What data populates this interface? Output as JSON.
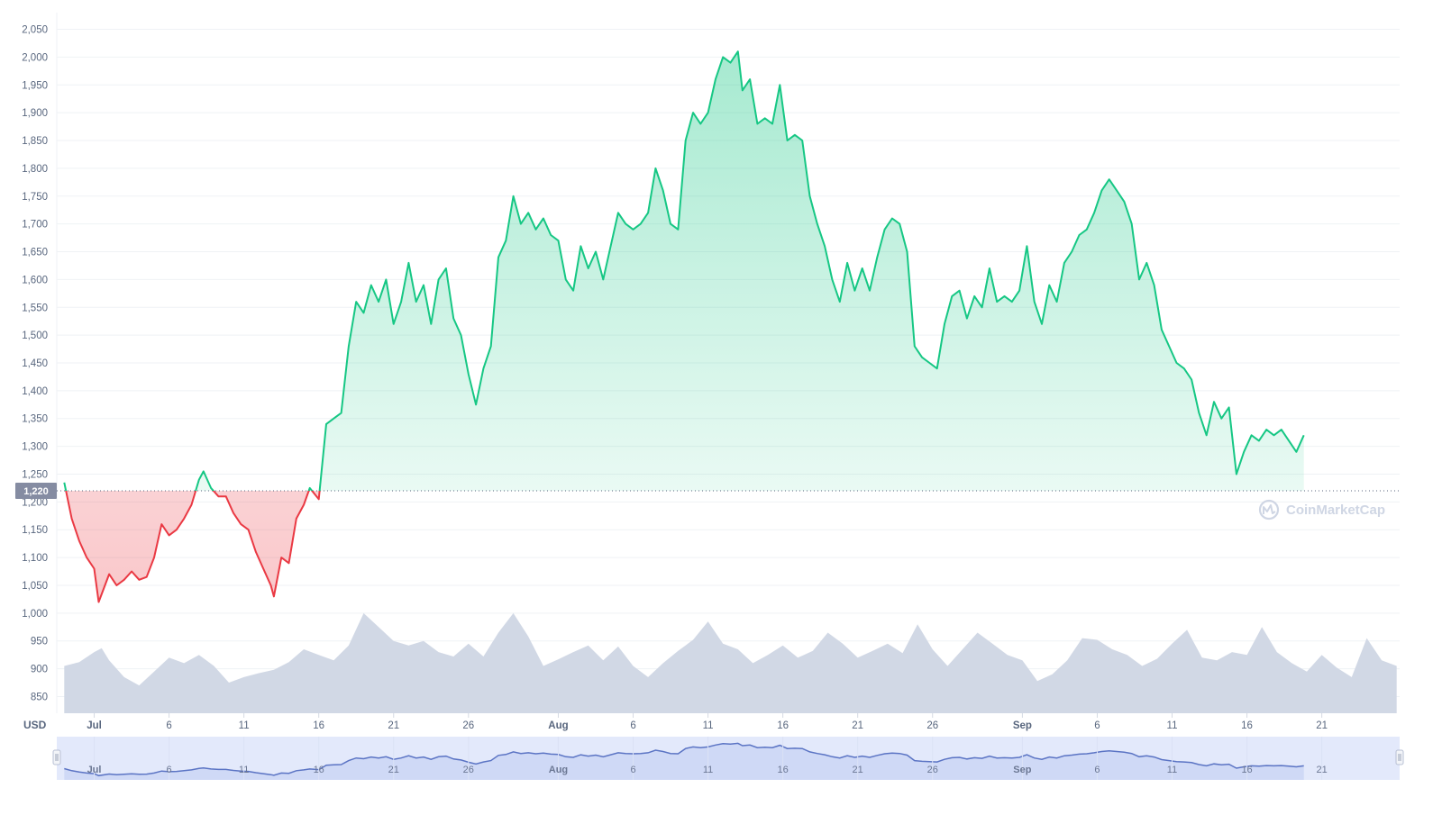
{
  "chart_data": {
    "type": "line",
    "unit_label": "USD",
    "watermark": "CoinMarketCap",
    "reference_line": {
      "value": 1220,
      "label": "1,220"
    },
    "ylim": [
      820,
      2080
    ],
    "yticks": [
      {
        "value": 850,
        "label": "850"
      },
      {
        "value": 900,
        "label": "900"
      },
      {
        "value": 950,
        "label": "950"
      },
      {
        "value": 1000,
        "label": "1,000"
      },
      {
        "value": 1050,
        "label": "1,050"
      },
      {
        "value": 1100,
        "label": "1,100"
      },
      {
        "value": 1150,
        "label": "1,150"
      },
      {
        "value": 1200,
        "label": "1,200"
      },
      {
        "value": 1250,
        "label": "1,250"
      },
      {
        "value": 1300,
        "label": "1,300"
      },
      {
        "value": 1350,
        "label": "1,350"
      },
      {
        "value": 1400,
        "label": "1,400"
      },
      {
        "value": 1450,
        "label": "1,450"
      },
      {
        "value": 1500,
        "label": "1,500"
      },
      {
        "value": 1550,
        "label": "1,550"
      },
      {
        "value": 1600,
        "label": "1,600"
      },
      {
        "value": 1650,
        "label": "1,650"
      },
      {
        "value": 1700,
        "label": "1,700"
      },
      {
        "value": 1750,
        "label": "1,750"
      },
      {
        "value": 1800,
        "label": "1,800"
      },
      {
        "value": 1850,
        "label": "1,850"
      },
      {
        "value": 1900,
        "label": "1,900"
      },
      {
        "value": 1950,
        "label": "1,950"
      },
      {
        "value": 2000,
        "label": "2,000"
      },
      {
        "value": 2050,
        "label": "2,050"
      }
    ],
    "xlim": [
      -0.5,
      89.2
    ],
    "xticks": [
      {
        "day": 2,
        "label": "Jul",
        "bold": true
      },
      {
        "day": 7,
        "label": "6",
        "bold": false
      },
      {
        "day": 12,
        "label": "11",
        "bold": false
      },
      {
        "day": 17,
        "label": "16",
        "bold": false
      },
      {
        "day": 22,
        "label": "21",
        "bold": false
      },
      {
        "day": 27,
        "label": "26",
        "bold": false
      },
      {
        "day": 33,
        "label": "Aug",
        "bold": true
      },
      {
        "day": 38,
        "label": "6",
        "bold": false
      },
      {
        "day": 43,
        "label": "11",
        "bold": false
      },
      {
        "day": 48,
        "label": "16",
        "bold": false
      },
      {
        "day": 53,
        "label": "21",
        "bold": false
      },
      {
        "day": 58,
        "label": "26",
        "bold": false
      },
      {
        "day": 64,
        "label": "Sep",
        "bold": true
      },
      {
        "day": 69,
        "label": "6",
        "bold": false
      },
      {
        "day": 74,
        "label": "11",
        "bold": false
      },
      {
        "day": 79,
        "label": "16",
        "bold": false
      },
      {
        "day": 84,
        "label": "21",
        "bold": false
      }
    ],
    "series": [
      {
        "values": [
          [
            0,
            1235
          ],
          [
            0.5,
            1170
          ],
          [
            1,
            1130
          ],
          [
            1.5,
            1100
          ],
          [
            2,
            1080
          ],
          [
            2.3,
            1020
          ],
          [
            3,
            1070
          ],
          [
            3.5,
            1050
          ],
          [
            4,
            1060
          ],
          [
            4.5,
            1075
          ],
          [
            5,
            1060
          ],
          [
            5.5,
            1065
          ],
          [
            6,
            1100
          ],
          [
            6.5,
            1160
          ],
          [
            7,
            1140
          ],
          [
            7.5,
            1150
          ],
          [
            8,
            1170
          ],
          [
            8.5,
            1195
          ],
          [
            9,
            1240
          ],
          [
            9.3,
            1255
          ],
          [
            9.8,
            1225
          ],
          [
            10.3,
            1210
          ],
          [
            10.8,
            1210
          ],
          [
            11.3,
            1180
          ],
          [
            11.8,
            1160
          ],
          [
            12.3,
            1150
          ],
          [
            12.8,
            1110
          ],
          [
            13.3,
            1080
          ],
          [
            13.8,
            1050
          ],
          [
            14,
            1030
          ],
          [
            14.5,
            1100
          ],
          [
            15,
            1090
          ],
          [
            15.5,
            1170
          ],
          [
            16,
            1195
          ],
          [
            16.4,
            1225
          ],
          [
            17,
            1205
          ],
          [
            17.5,
            1340
          ],
          [
            18,
            1350
          ],
          [
            18.5,
            1360
          ],
          [
            19,
            1480
          ],
          [
            19.5,
            1560
          ],
          [
            20,
            1540
          ],
          [
            20.5,
            1590
          ],
          [
            21,
            1560
          ],
          [
            21.5,
            1600
          ],
          [
            22,
            1520
          ],
          [
            22.5,
            1560
          ],
          [
            23,
            1630
          ],
          [
            23.5,
            1560
          ],
          [
            24,
            1590
          ],
          [
            24.5,
            1520
          ],
          [
            25,
            1600
          ],
          [
            25.5,
            1620
          ],
          [
            26,
            1530
          ],
          [
            26.5,
            1500
          ],
          [
            27,
            1430
          ],
          [
            27.5,
            1375
          ],
          [
            28,
            1440
          ],
          [
            28.5,
            1480
          ],
          [
            29,
            1640
          ],
          [
            29.5,
            1670
          ],
          [
            30,
            1750
          ],
          [
            30.5,
            1700
          ],
          [
            31,
            1720
          ],
          [
            31.5,
            1690
          ],
          [
            32,
            1710
          ],
          [
            32.5,
            1680
          ],
          [
            33,
            1670
          ],
          [
            33.5,
            1600
          ],
          [
            34,
            1580
          ],
          [
            34.5,
            1660
          ],
          [
            35,
            1620
          ],
          [
            35.5,
            1650
          ],
          [
            36,
            1600
          ],
          [
            36.5,
            1660
          ],
          [
            37,
            1720
          ],
          [
            37.5,
            1700
          ],
          [
            38,
            1690
          ],
          [
            38.5,
            1700
          ],
          [
            39,
            1720
          ],
          [
            39.5,
            1800
          ],
          [
            40,
            1760
          ],
          [
            40.5,
            1700
          ],
          [
            41,
            1690
          ],
          [
            41.5,
            1850
          ],
          [
            42,
            1900
          ],
          [
            42.5,
            1880
          ],
          [
            43,
            1900
          ],
          [
            43.5,
            1960
          ],
          [
            44,
            2000
          ],
          [
            44.5,
            1990
          ],
          [
            45,
            2010
          ],
          [
            45.3,
            1940
          ],
          [
            45.8,
            1960
          ],
          [
            46.3,
            1880
          ],
          [
            46.8,
            1890
          ],
          [
            47.3,
            1880
          ],
          [
            47.8,
            1950
          ],
          [
            48.3,
            1850
          ],
          [
            48.8,
            1860
          ],
          [
            49.3,
            1850
          ],
          [
            49.8,
            1750
          ],
          [
            50.3,
            1700
          ],
          [
            50.8,
            1660
          ],
          [
            51.3,
            1600
          ],
          [
            51.8,
            1560
          ],
          [
            52.3,
            1630
          ],
          [
            52.8,
            1580
          ],
          [
            53.3,
            1620
          ],
          [
            53.8,
            1580
          ],
          [
            54.3,
            1640
          ],
          [
            54.8,
            1690
          ],
          [
            55.3,
            1710
          ],
          [
            55.8,
            1700
          ],
          [
            56.3,
            1650
          ],
          [
            56.8,
            1480
          ],
          [
            57.3,
            1460
          ],
          [
            57.8,
            1450
          ],
          [
            58.3,
            1440
          ],
          [
            58.8,
            1520
          ],
          [
            59.3,
            1570
          ],
          [
            59.8,
            1580
          ],
          [
            60.3,
            1530
          ],
          [
            60.8,
            1570
          ],
          [
            61.3,
            1550
          ],
          [
            61.8,
            1620
          ],
          [
            62.3,
            1560
          ],
          [
            62.8,
            1570
          ],
          [
            63.3,
            1560
          ],
          [
            63.8,
            1580
          ],
          [
            64.3,
            1660
          ],
          [
            64.8,
            1560
          ],
          [
            65.3,
            1520
          ],
          [
            65.8,
            1590
          ],
          [
            66.3,
            1560
          ],
          [
            66.8,
            1630
          ],
          [
            67.3,
            1650
          ],
          [
            67.8,
            1680
          ],
          [
            68.3,
            1690
          ],
          [
            68.8,
            1720
          ],
          [
            69.3,
            1760
          ],
          [
            69.8,
            1780
          ],
          [
            70.3,
            1760
          ],
          [
            70.8,
            1740
          ],
          [
            71.3,
            1700
          ],
          [
            71.8,
            1600
          ],
          [
            72.3,
            1630
          ],
          [
            72.8,
            1590
          ],
          [
            73.3,
            1510
          ],
          [
            73.8,
            1480
          ],
          [
            74.3,
            1450
          ],
          [
            74.8,
            1440
          ],
          [
            75.3,
            1420
          ],
          [
            75.8,
            1360
          ],
          [
            76.3,
            1320
          ],
          [
            76.8,
            1380
          ],
          [
            77.3,
            1350
          ],
          [
            77.8,
            1370
          ],
          [
            78.3,
            1250
          ],
          [
            78.8,
            1290
          ],
          [
            79.3,
            1320
          ],
          [
            79.8,
            1310
          ],
          [
            80.3,
            1330
          ],
          [
            80.8,
            1320
          ],
          [
            81.3,
            1330
          ],
          [
            81.8,
            1310
          ],
          [
            82.3,
            1290
          ],
          [
            82.8,
            1320
          ]
        ]
      }
    ],
    "volume": [
      [
        0,
        905
      ],
      [
        1,
        912
      ],
      [
        2,
        930
      ],
      [
        2.5,
        937
      ],
      [
        3,
        915
      ],
      [
        4,
        885
      ],
      [
        5,
        870
      ],
      [
        6,
        895
      ],
      [
        7,
        920
      ],
      [
        8,
        910
      ],
      [
        9,
        925
      ],
      [
        10,
        905
      ],
      [
        11,
        875
      ],
      [
        12,
        885
      ],
      [
        13,
        892
      ],
      [
        14,
        898
      ],
      [
        15,
        912
      ],
      [
        16,
        935
      ],
      [
        17,
        925
      ],
      [
        18,
        915
      ],
      [
        19,
        942
      ],
      [
        20,
        1000
      ],
      [
        21,
        975
      ],
      [
        22,
        950
      ],
      [
        23,
        942
      ],
      [
        24,
        950
      ],
      [
        25,
        930
      ],
      [
        26,
        922
      ],
      [
        27,
        945
      ],
      [
        28,
        922
      ],
      [
        29,
        965
      ],
      [
        30,
        1000
      ],
      [
        31,
        958
      ],
      [
        32,
        905
      ],
      [
        33,
        917
      ],
      [
        34,
        930
      ],
      [
        35,
        942
      ],
      [
        36,
        915
      ],
      [
        37,
        940
      ],
      [
        38,
        905
      ],
      [
        39,
        885
      ],
      [
        40,
        910
      ],
      [
        41,
        932
      ],
      [
        42,
        952
      ],
      [
        43,
        985
      ],
      [
        44,
        945
      ],
      [
        45,
        935
      ],
      [
        46,
        910
      ],
      [
        47,
        925
      ],
      [
        48,
        942
      ],
      [
        49,
        920
      ],
      [
        50,
        932
      ],
      [
        51,
        965
      ],
      [
        52,
        945
      ],
      [
        53,
        920
      ],
      [
        54,
        932
      ],
      [
        55,
        945
      ],
      [
        56,
        928
      ],
      [
        57,
        980
      ],
      [
        58,
        935
      ],
      [
        59,
        905
      ],
      [
        60,
        935
      ],
      [
        61,
        965
      ],
      [
        62,
        945
      ],
      [
        63,
        925
      ],
      [
        64,
        915
      ],
      [
        65,
        878
      ],
      [
        66,
        890
      ],
      [
        67,
        915
      ],
      [
        68,
        955
      ],
      [
        69,
        952
      ],
      [
        70,
        935
      ],
      [
        71,
        925
      ],
      [
        72,
        905
      ],
      [
        73,
        918
      ],
      [
        74,
        945
      ],
      [
        75,
        970
      ],
      [
        76,
        920
      ],
      [
        77,
        915
      ],
      [
        78,
        930
      ],
      [
        79,
        925
      ],
      [
        80,
        975
      ],
      [
        81,
        930
      ],
      [
        82,
        910
      ],
      [
        83,
        895
      ],
      [
        84,
        925
      ],
      [
        85,
        902
      ],
      [
        86,
        885
      ],
      [
        87,
        955
      ],
      [
        88,
        915
      ],
      [
        89,
        905
      ]
    ],
    "navigator": {
      "xticks": [
        {
          "day": 2,
          "label": "Jul",
          "bold": true
        },
        {
          "day": 7,
          "label": "6",
          "bold": false
        },
        {
          "day": 12,
          "label": "11",
          "bold": false
        },
        {
          "day": 17,
          "label": "16",
          "bold": false
        },
        {
          "day": 22,
          "label": "21",
          "bold": false
        },
        {
          "day": 27,
          "label": "26",
          "bold": false
        },
        {
          "day": 33,
          "label": "Aug",
          "bold": true
        },
        {
          "day": 38,
          "label": "6",
          "bold": false
        },
        {
          "day": 43,
          "label": "11",
          "bold": false
        },
        {
          "day": 48,
          "label": "16",
          "bold": false
        },
        {
          "day": 53,
          "label": "21",
          "bold": false
        },
        {
          "day": 58,
          "label": "26",
          "bold": false
        },
        {
          "day": 64,
          "label": "Sep",
          "bold": true
        },
        {
          "day": 69,
          "label": "6",
          "bold": false
        },
        {
          "day": 74,
          "label": "11",
          "bold": false
        },
        {
          "day": 79,
          "label": "16",
          "bold": false
        },
        {
          "day": 84,
          "label": "21",
          "bold": false
        }
      ]
    },
    "colors": {
      "up": "#16c784",
      "down": "#ea3943",
      "volume": "#cfd6e4",
      "grid": "#eff2f5",
      "axis_text": "#58667e",
      "reference_badge": "#858ca2",
      "navigator_fill": "#e3e9fb",
      "navigator_line": "#5b74c4"
    },
    "grid": true,
    "legend": "none"
  }
}
